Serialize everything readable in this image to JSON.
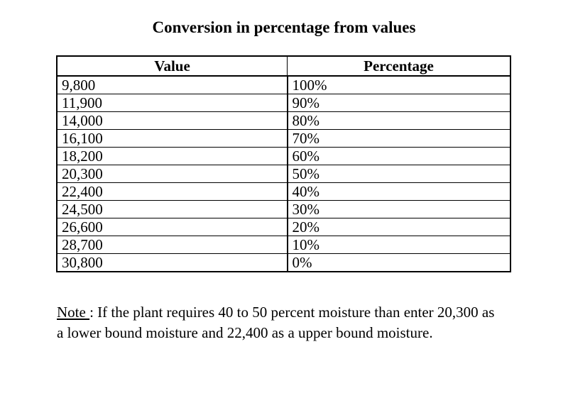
{
  "title": "Conversion in percentage from values",
  "table": {
    "headers": [
      "Value",
      "Percentage"
    ],
    "rows": [
      {
        "value": "9,800",
        "percentage": "100%"
      },
      {
        "value": "11,900",
        "percentage": "90%"
      },
      {
        "value": "14,000",
        "percentage": "80%"
      },
      {
        "value": "16,100",
        "percentage": "70%"
      },
      {
        "value": "18,200",
        "percentage": "60%"
      },
      {
        "value": "20,300",
        "percentage": "50%"
      },
      {
        "value": "22,400",
        "percentage": "40%"
      },
      {
        "value": "24,500",
        "percentage": "30%"
      },
      {
        "value": "26,600",
        "percentage": "20%"
      },
      {
        "value": "28,700",
        "percentage": "10%"
      },
      {
        "value": "30,800",
        "percentage": "0%"
      }
    ]
  },
  "note": {
    "label": "Note ",
    "text": ": If the plant requires 40 to 50 percent moisture than enter 20,300 as a lower bound moisture and 22,400 as a upper bound moisture."
  }
}
